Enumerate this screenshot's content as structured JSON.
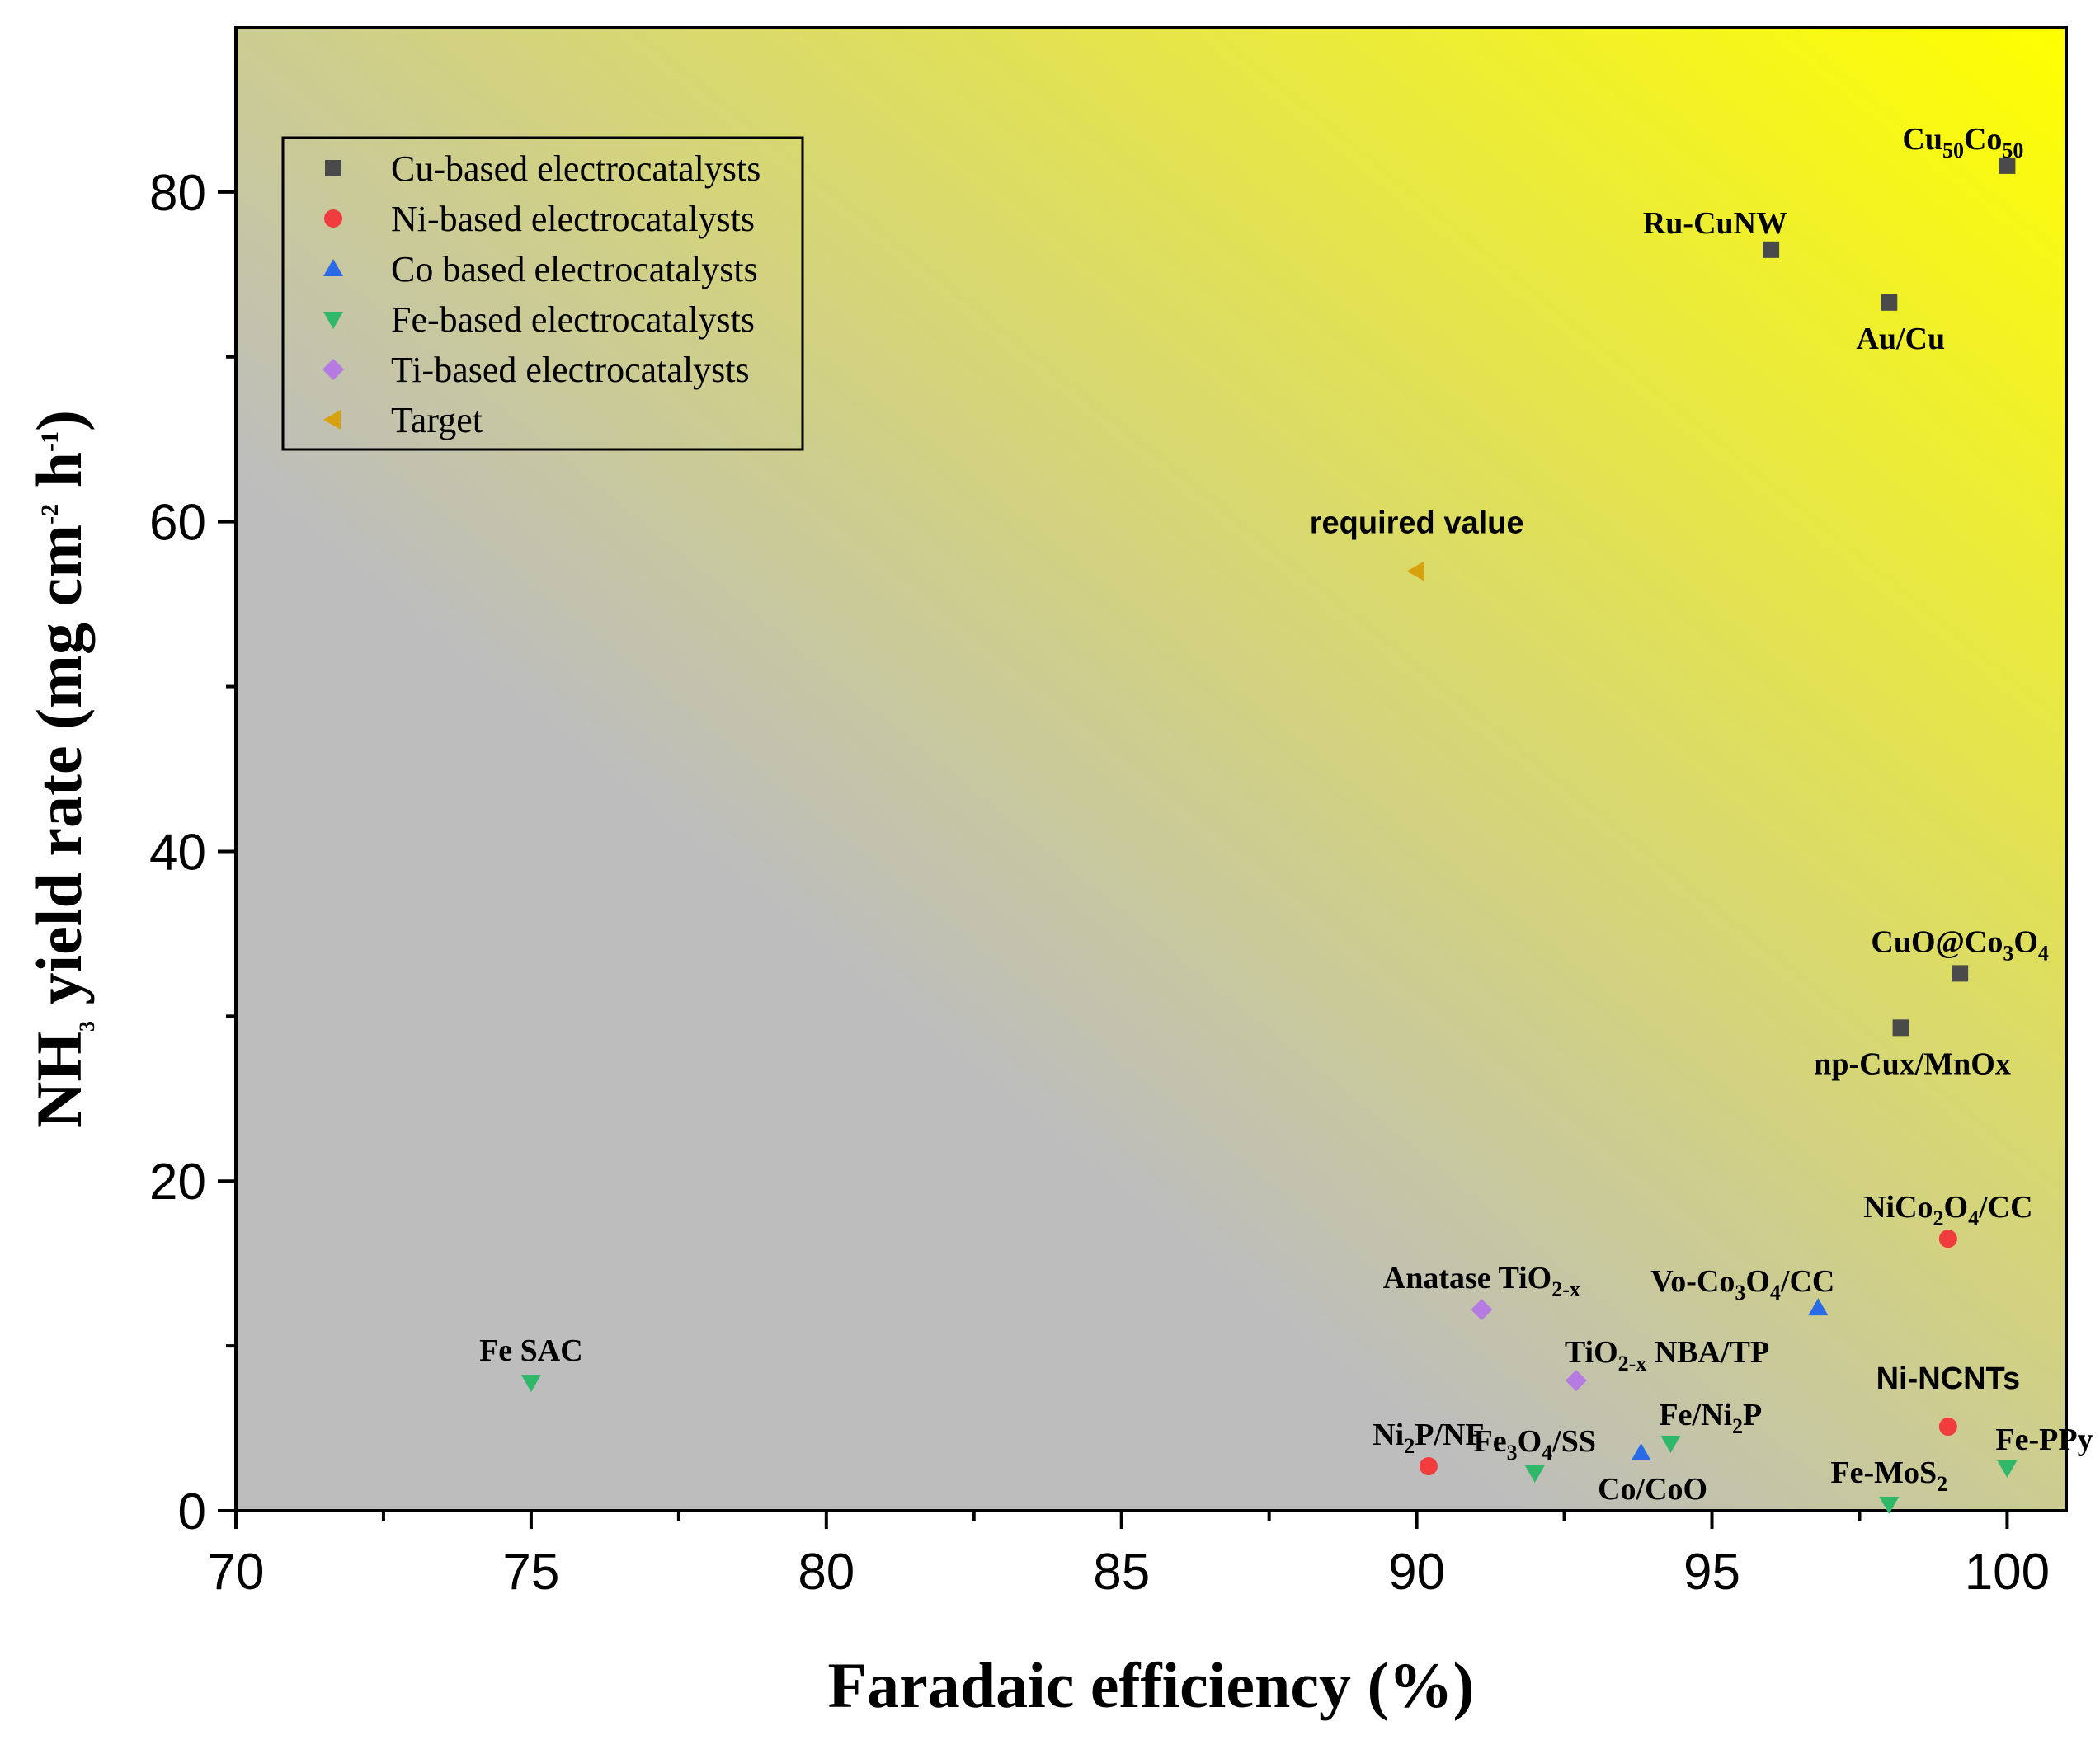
{
  "chart_data": {
    "type": "scatter",
    "xlabel": "Faradaic efficiency (%)",
    "ylabel": {
      "before": "NH",
      "sub": "3",
      "mid": " yield rate (mg cm",
      "sup1": "-2",
      "mid2": " h",
      "sup2": "-1",
      "after": ")"
    },
    "xlim": [
      70,
      101
    ],
    "ylim": [
      0,
      90
    ],
    "x_ticks": [
      70,
      75,
      80,
      85,
      90,
      95,
      100
    ],
    "y_ticks": [
      0,
      20,
      40,
      60,
      80
    ],
    "background_gradient": {
      "low": "#bdbdbd",
      "high": "#ffff00"
    },
    "legend": {
      "placement": "top-left",
      "entries": [
        {
          "label": "Cu-based electrocatalysts",
          "marker": "square",
          "color": "#4a4a4a"
        },
        {
          "label": "Ni-based electrocatalysts",
          "marker": "circle",
          "color": "#f03c3c"
        },
        {
          "label": "Co based electrocatalysts",
          "marker": "triangle-up",
          "color": "#2b6ae6"
        },
        {
          "label": "Fe-based electrocatalysts",
          "marker": "triangle-down",
          "color": "#2fb86a"
        },
        {
          "label": "Ti-based electrocatalysts",
          "marker": "diamond",
          "color": "#b57be0"
        },
        {
          "label": "Target",
          "marker": "triangle-left",
          "color": "#d8a10e"
        }
      ]
    },
    "series": [
      {
        "name": "Cu-based electrocatalysts",
        "marker": "square",
        "color": "#4a4a4a",
        "points": [
          {
            "x": 100.0,
            "y": 81.6,
            "label": [
              {
                "t": "Cu"
              },
              {
                "t": "50",
                "s": "sub"
              },
              {
                "t": "Co"
              },
              {
                "t": "50",
                "s": "sub"
              }
            ],
            "font": "serif",
            "pos": "above-left"
          },
          {
            "x": 96.0,
            "y": 76.5,
            "label": [
              {
                "t": "Ru-CuNW"
              }
            ],
            "font": "serif",
            "pos": "above-left"
          },
          {
            "x": 98.0,
            "y": 73.3,
            "label": [
              {
                "t": "Au/Cu"
              }
            ],
            "font": "serif",
            "pos": "below"
          },
          {
            "x": 99.2,
            "y": 32.6,
            "label": [
              {
                "t": "CuO@Co"
              },
              {
                "t": "3",
                "s": "sub"
              },
              {
                "t": "O"
              },
              {
                "t": "4",
                "s": "sub"
              }
            ],
            "font": "serif",
            "pos": "above"
          },
          {
            "x": 98.2,
            "y": 29.3,
            "label": [
              {
                "t": "np-Cux/MnOx"
              }
            ],
            "font": "serif",
            "pos": "below"
          }
        ]
      },
      {
        "name": "Ni-based electrocatalysts",
        "marker": "circle",
        "color": "#f03c3c",
        "points": [
          {
            "x": 99.0,
            "y": 16.5,
            "label": [
              {
                "t": "NiCo"
              },
              {
                "t": "2",
                "s": "sub"
              },
              {
                "t": "O"
              },
              {
                "t": "4",
                "s": "sub"
              },
              {
                "t": "/CC"
              }
            ],
            "font": "serif",
            "pos": "above"
          },
          {
            "x": 99.0,
            "y": 5.1,
            "label": [
              {
                "t": "Ni-NCNTs"
              }
            ],
            "font": "sans",
            "pos": "above-high"
          },
          {
            "x": 90.2,
            "y": 2.7,
            "label": [
              {
                "t": "Ni"
              },
              {
                "t": "2",
                "s": "sub"
              },
              {
                "t": "P/NF"
              }
            ],
            "font": "serif",
            "pos": "above"
          }
        ]
      },
      {
        "name": "Co based electrocatalysts",
        "marker": "triangle-up",
        "color": "#2b6ae6",
        "points": [
          {
            "x": 96.8,
            "y": 12.3,
            "label": [
              {
                "t": "Vo-Co"
              },
              {
                "t": "3",
                "s": "sub"
              },
              {
                "t": "O"
              },
              {
                "t": "4",
                "s": "sub"
              },
              {
                "t": "/CC"
              }
            ],
            "font": "serif",
            "pos": "above-left"
          },
          {
            "x": 93.8,
            "y": 3.5,
            "label": [
              {
                "t": "Co/CoO"
              }
            ],
            "font": "serif",
            "pos": "below"
          }
        ]
      },
      {
        "name": "Fe-based electrocatalysts",
        "marker": "triangle-down",
        "color": "#2fb86a",
        "points": [
          {
            "x": 75.0,
            "y": 7.8,
            "label": [
              {
                "t": "Fe SAC"
              }
            ],
            "font": "serif",
            "pos": "above"
          },
          {
            "x": 92.0,
            "y": 2.3,
            "label": [
              {
                "t": "Fe"
              },
              {
                "t": "3",
                "s": "sub"
              },
              {
                "t": "O"
              },
              {
                "t": "4",
                "s": "sub"
              },
              {
                "t": "/SS"
              }
            ],
            "font": "serif",
            "pos": "above"
          },
          {
            "x": 94.3,
            "y": 4.1,
            "label": [
              {
                "t": "Fe/Ni"
              },
              {
                "t": "2",
                "s": "sub"
              },
              {
                "t": "P"
              }
            ],
            "font": "serif",
            "pos": "above-right"
          },
          {
            "x": 98.0,
            "y": 0.4,
            "label": [
              {
                "t": "Fe-MoS"
              },
              {
                "t": "2",
                "s": "sub"
              }
            ],
            "font": "serif",
            "pos": "above"
          },
          {
            "x": 100.0,
            "y": 2.6,
            "label": [
              {
                "t": "Fe-PPy"
              }
            ],
            "font": "serif",
            "pos": "above-right"
          }
        ]
      },
      {
        "name": "Ti-based electrocatalysts",
        "marker": "diamond",
        "color": "#b57be0",
        "points": [
          {
            "x": 91.1,
            "y": 12.2,
            "label": [
              {
                "t": "Anatase TiO"
              },
              {
                "t": "2-x",
                "s": "sub"
              }
            ],
            "font": "serif",
            "pos": "above"
          },
          {
            "x": 92.7,
            "y": 7.9,
            "label": [
              {
                "t": "TiO"
              },
              {
                "t": "2-x",
                "s": "sub"
              },
              {
                "t": " NBA/TP"
              }
            ],
            "font": "serif",
            "pos": "above-right"
          }
        ]
      },
      {
        "name": "Target",
        "marker": "triangle-left",
        "color": "#d8a10e",
        "points": [
          {
            "x": 90.0,
            "y": 57.0,
            "label": [
              {
                "t": "required value"
              }
            ],
            "font": "sans",
            "pos": "above-high"
          }
        ]
      }
    ]
  }
}
